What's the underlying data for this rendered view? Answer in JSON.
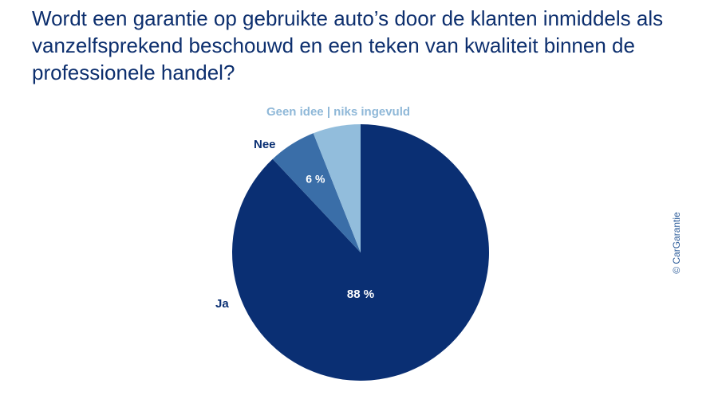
{
  "title": "Wordt een garantie op gebruikte auto’s door de klanten inmiddels als vanzelfsprekend beschouwd en een teken van kwaliteit binnen de professionele handel?",
  "copyright": "© CarGarantie",
  "colors": {
    "title": "#0d2f6e",
    "ja": "#0a2f73",
    "nee": "#3a6ea8",
    "geen_idee": "#92bddc",
    "label_light": "#8fb8d8"
  },
  "chart_data": {
    "type": "pie",
    "title": "Wordt een garantie op gebruikte auto’s door de klanten inmiddels als vanzelfsprekend beschouwd en een teken van kwaliteit binnen de professionele handel?",
    "slices": [
      {
        "label": "Ja",
        "value": 88,
        "value_label": "88 %",
        "color": "#0a2f73"
      },
      {
        "label": "Nee",
        "value": 6,
        "value_label": "6 %",
        "color": "#3a6ea8"
      },
      {
        "label": "Geen idee | niks ingevuld",
        "value": 6,
        "value_label": "",
        "color": "#92bddc"
      }
    ]
  }
}
